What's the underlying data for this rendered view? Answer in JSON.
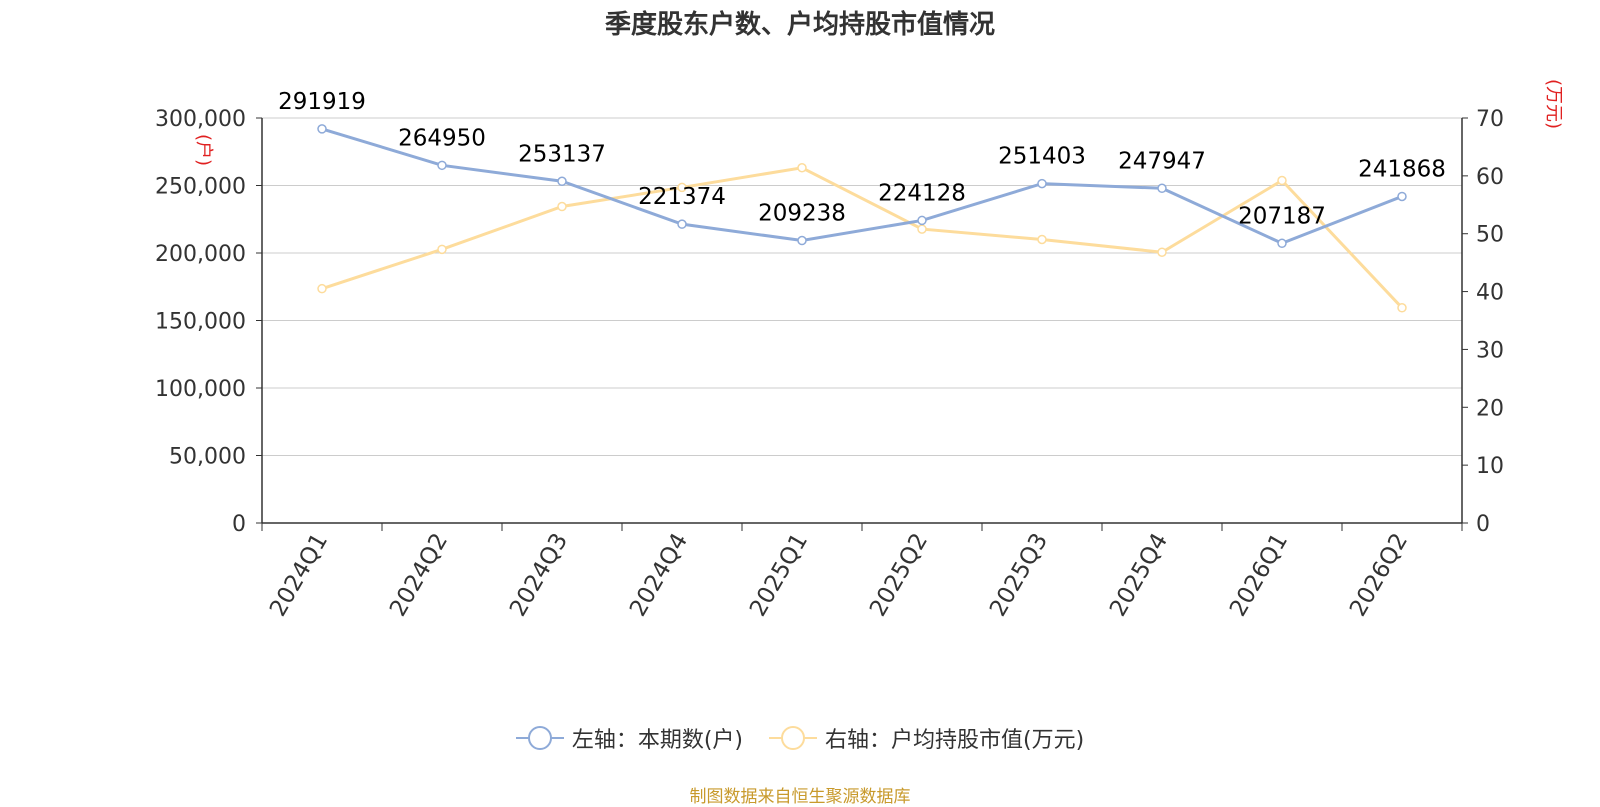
{
  "chart_data": {
    "type": "line",
    "title": "季度股东户数、户均持股市值情况",
    "categories": [
      "2024Q1",
      "2024Q2",
      "2024Q3",
      "2024Q4",
      "2025Q1",
      "2025Q2",
      "2025Q3",
      "2025Q4",
      "2026Q1",
      "2026Q2"
    ],
    "y_left": {
      "label": "(户)",
      "ylim": [
        0,
        300000
      ],
      "ticks": [
        "0",
        "50,000",
        "100,000",
        "150,000",
        "200,000",
        "250,000",
        "300,000"
      ],
      "tick_values": [
        0,
        50000,
        100000,
        150000,
        200000,
        250000,
        300000
      ]
    },
    "y_right": {
      "label": "(万元)",
      "ylim": [
        0,
        70
      ],
      "ticks": [
        "0",
        "10",
        "20",
        "30",
        "40",
        "50",
        "60",
        "70"
      ],
      "tick_values": [
        0,
        10,
        20,
        30,
        40,
        50,
        60,
        70
      ]
    },
    "grid": true,
    "legend_position": "bottom",
    "series": [
      {
        "name": "左轴：本期数(户)",
        "axis": "left",
        "color": "#8eaad8",
        "values": [
          291919,
          264950,
          253137,
          221374,
          209238,
          224128,
          251403,
          247947,
          207187,
          241868
        ],
        "labels": [
          "291919",
          "264950",
          "253137",
          "221374",
          "209238",
          "224128",
          "251403",
          "247947",
          "207187",
          "241868"
        ]
      },
      {
        "name": "右轴：户均持股市值(万元)",
        "axis": "right",
        "color": "#fddc9c",
        "values": [
          40.5,
          47.3,
          54.7,
          58.0,
          61.4,
          50.8,
          49.0,
          46.8,
          59.2,
          37.2
        ]
      }
    ]
  },
  "footer": "制图数据来自恒生聚源数据库"
}
